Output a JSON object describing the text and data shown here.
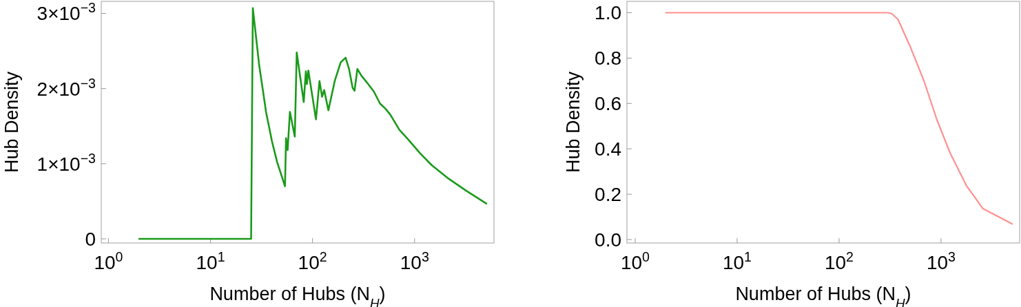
{
  "chart_data": [
    {
      "type": "line",
      "xlabel": "Number of Hubs (N$_{H}$)",
      "ylabel": "Hub Density",
      "log": "x",
      "color": "#1a9a1a",
      "xlim": [
        0.85,
        6000
      ],
      "ylim": [
        -5.5e-05,
        0.00316
      ],
      "xticks": [
        {
          "value": 1,
          "label": "10$^{0}$"
        },
        {
          "value": 10,
          "label": "10$^{1}$"
        },
        {
          "value": 100,
          "label": "10$^{2}$"
        },
        {
          "value": 1000,
          "label": "10$^{3}$"
        }
      ],
      "yticks": [
        {
          "value": 0,
          "label": "0"
        },
        {
          "value": 0.001,
          "label": "1×10$^{−3}$"
        },
        {
          "value": 0.002,
          "label": "2×10$^{−3}$"
        },
        {
          "value": 0.003,
          "label": "3×10$^{−3}$"
        }
      ],
      "x": [
        2,
        25,
        26,
        30,
        33,
        35,
        40,
        45,
        50,
        53.7,
        55,
        57,
        60,
        67,
        70,
        82,
        86,
        88,
        91,
        108,
        117,
        124,
        130,
        143,
        165,
        189,
        211,
        228,
        247,
        258,
        275,
        302,
        337,
        399,
        459,
        520,
        580,
        710,
        869,
        1132,
        1475,
        2110,
        3210,
        5040
      ],
      "values": [
        0,
        0,
        0.00307,
        0.00231,
        0.00193,
        0.00169,
        0.0013,
        0.00102,
        0.00083,
        0.0007,
        0.00134,
        0.00118,
        0.00169,
        0.00136,
        0.00248,
        0.00182,
        0.00223,
        0.00206,
        0.00224,
        0.00159,
        0.0021,
        0.00189,
        0.00198,
        0.00171,
        0.0021,
        0.00235,
        0.00241,
        0.00226,
        0.00201,
        0.00197,
        0.00226,
        0.00217,
        0.00209,
        0.00196,
        0.0018,
        0.00173,
        0.00165,
        0.00145,
        0.00132,
        0.00114,
        0.00098,
        0.00081,
        0.00064,
        0.00047
      ]
    },
    {
      "type": "line",
      "xlabel": "Number of Hubs (N$_{H}$)",
      "ylabel": "Hub Density",
      "log": "x",
      "color": "#ff9090",
      "xlim": [
        0.83,
        5900
      ],
      "ylim": [
        -0.015,
        1.05
      ],
      "xticks": [
        {
          "value": 1,
          "label": "10$^{0}$"
        },
        {
          "value": 10,
          "label": "10$^{1}$"
        },
        {
          "value": 100,
          "label": "10$^{2}$"
        },
        {
          "value": 1000,
          "label": "10$^{3}$"
        }
      ],
      "yticks": [
        {
          "value": 0,
          "label": "0.0"
        },
        {
          "value": 0.2,
          "label": "0.2"
        },
        {
          "value": 0.4,
          "label": "0.4"
        },
        {
          "value": 0.6,
          "label": "0.6"
        },
        {
          "value": 0.8,
          "label": "0.8"
        },
        {
          "value": 1,
          "label": "1.0"
        }
      ],
      "x": [
        2,
        100,
        302,
        326,
        378,
        508,
        682,
        916,
        1230,
        1778,
        2570,
        4990
      ],
      "values": [
        1,
        1,
        1,
        0.997,
        0.971,
        0.842,
        0.698,
        0.525,
        0.381,
        0.237,
        0.137,
        0.069
      ]
    }
  ]
}
